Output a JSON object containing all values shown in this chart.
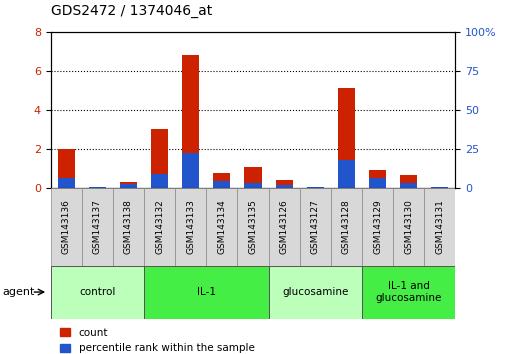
{
  "title": "GDS2472 / 1374046_at",
  "samples": [
    "GSM143136",
    "GSM143137",
    "GSM143138",
    "GSM143132",
    "GSM143133",
    "GSM143134",
    "GSM143135",
    "GSM143126",
    "GSM143127",
    "GSM143128",
    "GSM143129",
    "GSM143130",
    "GSM143131"
  ],
  "count_values": [
    2.0,
    0.05,
    0.3,
    3.0,
    6.8,
    0.75,
    1.05,
    0.4,
    0.05,
    5.1,
    0.9,
    0.65,
    0.05
  ],
  "percentile_values": [
    6.25,
    0.625,
    2.5,
    8.75,
    22.5,
    4.375,
    3.125,
    1.875,
    0.625,
    17.5,
    6.25,
    3.125,
    0.625
  ],
  "count_color": "#cc2200",
  "percentile_color": "#2255cc",
  "ylim_left": [
    0,
    8
  ],
  "ylim_right": [
    0,
    100
  ],
  "yticks_left": [
    0,
    2,
    4,
    6,
    8
  ],
  "yticks_right": [
    0,
    25,
    50,
    75,
    100
  ],
  "groups": [
    {
      "label": "control",
      "start": 0,
      "end": 3,
      "color": "#bbffbb"
    },
    {
      "label": "IL-1",
      "start": 3,
      "end": 7,
      "color": "#44ee44"
    },
    {
      "label": "glucosamine",
      "start": 7,
      "end": 10,
      "color": "#bbffbb"
    },
    {
      "label": "IL-1 and\nglucosamine",
      "start": 10,
      "end": 13,
      "color": "#44ee44"
    }
  ],
  "agent_label": "agent",
  "legend_count": "count",
  "legend_percentile": "percentile rank within the sample",
  "bar_width": 0.55,
  "background_color": "#ffffff",
  "tick_label_color_left": "#cc2200",
  "tick_label_color_right": "#2255cc",
  "cell_color": "#d8d8d8",
  "right_pct_label": "100%"
}
